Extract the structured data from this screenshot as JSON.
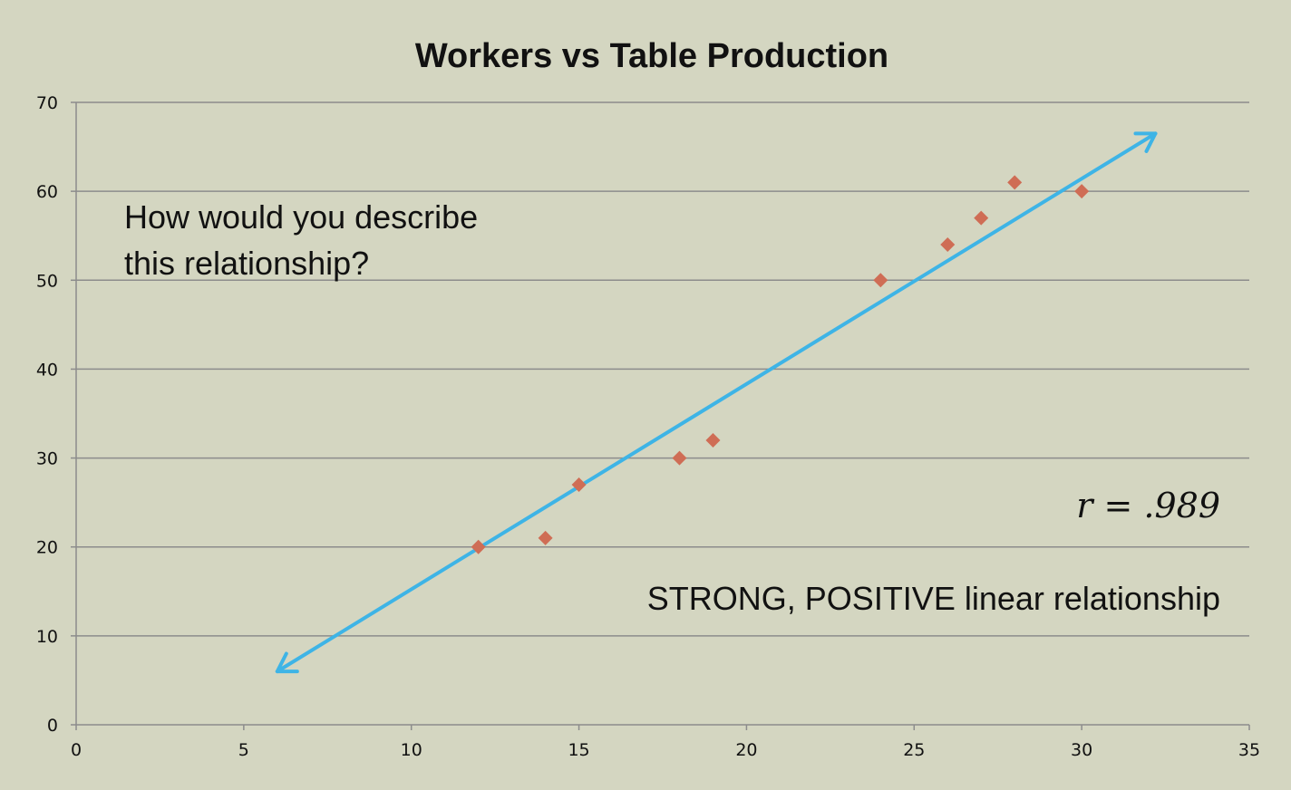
{
  "chart_data": {
    "type": "scatter",
    "title": "Workers vs Table Production",
    "xlabel": "",
    "ylabel": "",
    "xlim": [
      0,
      35
    ],
    "ylim": [
      0,
      70
    ],
    "x_ticks": [
      0,
      5,
      10,
      15,
      20,
      25,
      30,
      35
    ],
    "y_ticks": [
      0,
      10,
      20,
      30,
      40,
      50,
      60,
      70
    ],
    "grid": "horizontal",
    "series": [
      {
        "color": "#cf6d55",
        "marker": "diamond",
        "points": [
          {
            "x": 12,
            "y": 20
          },
          {
            "x": 14,
            "y": 21
          },
          {
            "x": 15,
            "y": 27
          },
          {
            "x": 18,
            "y": 30
          },
          {
            "x": 19,
            "y": 32
          },
          {
            "x": 24,
            "y": 50
          },
          {
            "x": 26,
            "y": 54
          },
          {
            "x": 27,
            "y": 57
          },
          {
            "x": 28,
            "y": 61
          },
          {
            "x": 30,
            "y": 60
          }
        ]
      }
    ],
    "trend_line": {
      "color": "#3eb4e6",
      "style": "double-arrow",
      "from": {
        "x": 6,
        "y": 6
      },
      "to": {
        "x": 32.2,
        "y": 66.5
      }
    },
    "annotations": {
      "question_line1": "How would you describe",
      "question_line2": "this relationship?",
      "r_value": "r = .989",
      "conclusion": "STRONG, POSITIVE linear relationship"
    }
  }
}
